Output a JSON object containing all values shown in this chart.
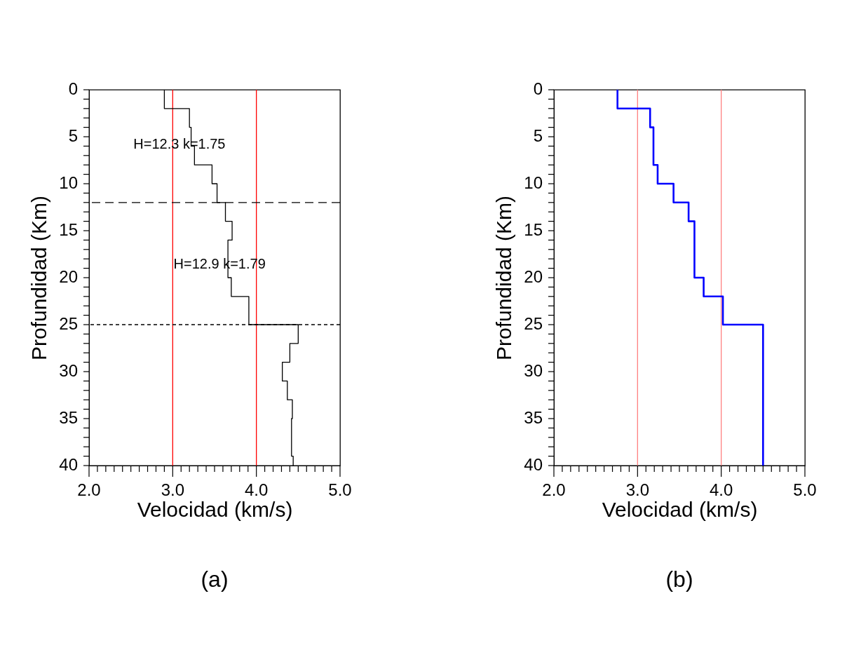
{
  "chart_data": [
    {
      "type": "line",
      "title": "(a)",
      "xlabel": "Velocidad (km/s)",
      "ylabel": "Profundidad (Km)",
      "series": [
        {
          "color": "#000000",
          "x": [
            2.9,
            2.9,
            3.2,
            3.2,
            3.22,
            3.22,
            3.26,
            3.26,
            3.47,
            3.47,
            3.53,
            3.53,
            3.63,
            3.63,
            3.71,
            3.71,
            3.66,
            3.66,
            3.7,
            3.7,
            3.91,
            3.91,
            4.5,
            4.5,
            4.4,
            4.4,
            4.31,
            4.31,
            4.37,
            4.37,
            4.43,
            4.43,
            4.42,
            4.42,
            4.44,
            4.44
          ],
          "values": [
            0,
            2,
            2,
            4,
            4,
            6,
            6,
            8,
            8,
            10,
            10,
            12,
            12,
            14,
            14,
            16,
            16,
            20,
            20,
            22,
            22,
            25,
            25,
            27,
            27,
            29,
            29,
            31,
            31,
            33,
            33,
            35,
            35,
            39,
            39,
            40
          ]
        }
      ],
      "xlim": [
        2.0,
        5.0
      ],
      "ylim": [
        40,
        0
      ],
      "xticks": [
        {
          "value": 2.0,
          "label": "2.0"
        },
        {
          "value": 2.1,
          "label": null
        },
        {
          "value": 2.2,
          "label": null
        },
        {
          "value": 2.3,
          "label": null
        },
        {
          "value": 2.4,
          "label": null
        },
        {
          "value": 2.5,
          "label": null
        },
        {
          "value": 2.6,
          "label": null
        },
        {
          "value": 2.7,
          "label": null
        },
        {
          "value": 2.8,
          "label": null
        },
        {
          "value": 2.9,
          "label": null
        },
        {
          "value": 3.0,
          "label": "3.0"
        },
        {
          "value": 3.1,
          "label": null
        },
        {
          "value": 3.2,
          "label": null
        },
        {
          "value": 3.3,
          "label": null
        },
        {
          "value": 3.4,
          "label": null
        },
        {
          "value": 3.5,
          "label": null
        },
        {
          "value": 3.6,
          "label": null
        },
        {
          "value": 3.7,
          "label": null
        },
        {
          "value": 3.8,
          "label": null
        },
        {
          "value": 3.9,
          "label": null
        },
        {
          "value": 4.0,
          "label": "4.0"
        },
        {
          "value": 4.1,
          "label": null
        },
        {
          "value": 4.2,
          "label": null
        },
        {
          "value": 4.3,
          "label": null
        },
        {
          "value": 4.4,
          "label": null
        },
        {
          "value": 4.5,
          "label": null
        },
        {
          "value": 4.6,
          "label": null
        },
        {
          "value": 4.7,
          "label": null
        },
        {
          "value": 4.8,
          "label": null
        },
        {
          "value": 4.9,
          "label": null
        },
        {
          "value": 5.0,
          "label": "5.0"
        }
      ],
      "yticks": [
        0,
        {
          "value": 1,
          "label": null
        },
        {
          "value": 2,
          "label": null
        },
        {
          "value": 3,
          "label": null
        },
        {
          "value": 4,
          "label": null
        },
        5,
        {
          "value": 6,
          "label": null
        },
        {
          "value": 7,
          "label": null
        },
        {
          "value": 8,
          "label": null
        },
        {
          "value": 9,
          "label": null
        },
        10,
        {
          "value": 11,
          "label": null
        },
        {
          "value": 12,
          "label": null
        },
        {
          "value": 13,
          "label": null
        },
        {
          "value": 14,
          "label": null
        },
        15,
        {
          "value": 16,
          "label": null
        },
        {
          "value": 17,
          "label": null
        },
        {
          "value": 18,
          "label": null
        },
        {
          "value": 19,
          "label": null
        },
        20,
        {
          "value": 21,
          "label": null
        },
        {
          "value": 22,
          "label": null
        },
        {
          "value": 23,
          "label": null
        },
        {
          "value": 24,
          "label": null
        },
        25,
        {
          "value": 26,
          "label": null
        },
        {
          "value": 27,
          "label": null
        },
        {
          "value": 28,
          "label": null
        },
        {
          "value": 29,
          "label": null
        },
        30,
        {
          "value": 31,
          "label": null
        },
        {
          "value": 32,
          "label": null
        },
        {
          "value": 33,
          "label": null
        },
        {
          "value": 34,
          "label": null
        },
        35,
        {
          "value": 36,
          "label": null
        },
        {
          "value": 37,
          "label": null
        },
        {
          "value": 38,
          "label": null
        },
        {
          "value": 39,
          "label": null
        },
        40
      ],
      "ref_lines": [
        {
          "axis": "x",
          "value": 3.0,
          "color": "#ff0000",
          "line_style": "solid"
        },
        {
          "axis": "x",
          "value": 4.0,
          "color": "#ff0000",
          "line_style": "solid"
        },
        {
          "axis": "y",
          "value": 12,
          "color": "#000000",
          "line_style": "dashed"
        },
        {
          "axis": "y",
          "value": 25,
          "color": "#000000",
          "line_style": "dotted"
        }
      ],
      "annotations": [
        "H=12.3   k=1.75",
        "H=12.9 k=1.79"
      ],
      "grid": false,
      "marker": "none",
      "line_style": "solid"
    },
    {
      "type": "line",
      "title": "(b)",
      "xlabel": "Velocidad (km/s)",
      "ylabel": "Profundidad (Km)",
      "series": [
        {
          "color": "#0000ff",
          "x": [
            2.76,
            2.76,
            3.15,
            3.15,
            3.19,
            3.19,
            3.24,
            3.24,
            3.43,
            3.43,
            3.61,
            3.61,
            3.68,
            3.68,
            3.79,
            3.79,
            4.02,
            4.02,
            4.5,
            4.5
          ],
          "values": [
            0,
            2,
            2,
            4,
            4,
            8,
            8,
            10,
            10,
            12,
            12,
            14,
            14,
            20,
            20,
            22,
            22,
            25,
            25,
            40
          ]
        }
      ],
      "xlim": [
        2.0,
        5.0
      ],
      "ylim": [
        40,
        0
      ],
      "xticks": [
        {
          "value": 2.0,
          "label": "2.0"
        },
        {
          "value": 2.1,
          "label": null
        },
        {
          "value": 2.2,
          "label": null
        },
        {
          "value": 2.3,
          "label": null
        },
        {
          "value": 2.4,
          "label": null
        },
        {
          "value": 2.5,
          "label": null
        },
        {
          "value": 2.6,
          "label": null
        },
        {
          "value": 2.7,
          "label": null
        },
        {
          "value": 2.8,
          "label": null
        },
        {
          "value": 2.9,
          "label": null
        },
        {
          "value": 3.0,
          "label": "3.0"
        },
        {
          "value": 3.1,
          "label": null
        },
        {
          "value": 3.2,
          "label": null
        },
        {
          "value": 3.3,
          "label": null
        },
        {
          "value": 3.4,
          "label": null
        },
        {
          "value": 3.5,
          "label": null
        },
        {
          "value": 3.6,
          "label": null
        },
        {
          "value": 3.7,
          "label": null
        },
        {
          "value": 3.8,
          "label": null
        },
        {
          "value": 3.9,
          "label": null
        },
        {
          "value": 4.0,
          "label": "4.0"
        },
        {
          "value": 4.1,
          "label": null
        },
        {
          "value": 4.2,
          "label": null
        },
        {
          "value": 4.3,
          "label": null
        },
        {
          "value": 4.4,
          "label": null
        },
        {
          "value": 4.5,
          "label": null
        },
        {
          "value": 4.6,
          "label": null
        },
        {
          "value": 4.7,
          "label": null
        },
        {
          "value": 4.8,
          "label": null
        },
        {
          "value": 4.9,
          "label": null
        },
        {
          "value": 5.0,
          "label": "5.0"
        }
      ],
      "yticks": [
        0,
        {
          "value": 1,
          "label": null
        },
        {
          "value": 2,
          "label": null
        },
        {
          "value": 3,
          "label": null
        },
        {
          "value": 4,
          "label": null
        },
        5,
        {
          "value": 6,
          "label": null
        },
        {
          "value": 7,
          "label": null
        },
        {
          "value": 8,
          "label": null
        },
        {
          "value": 9,
          "label": null
        },
        10,
        {
          "value": 11,
          "label": null
        },
        {
          "value": 12,
          "label": null
        },
        {
          "value": 13,
          "label": null
        },
        {
          "value": 14,
          "label": null
        },
        15,
        {
          "value": 16,
          "label": null
        },
        {
          "value": 17,
          "label": null
        },
        {
          "value": 18,
          "label": null
        },
        {
          "value": 19,
          "label": null
        },
        20,
        {
          "value": 21,
          "label": null
        },
        {
          "value": 22,
          "label": null
        },
        {
          "value": 23,
          "label": null
        },
        {
          "value": 24,
          "label": null
        },
        25,
        {
          "value": 26,
          "label": null
        },
        {
          "value": 27,
          "label": null
        },
        {
          "value": 28,
          "label": null
        },
        {
          "value": 29,
          "label": null
        },
        30,
        {
          "value": 31,
          "label": null
        },
        {
          "value": 32,
          "label": null
        },
        {
          "value": 33,
          "label": null
        },
        {
          "value": 34,
          "label": null
        },
        35,
        {
          "value": 36,
          "label": null
        },
        {
          "value": 37,
          "label": null
        },
        {
          "value": 38,
          "label": null
        },
        {
          "value": 39,
          "label": null
        },
        40
      ],
      "ref_lines": [
        {
          "axis": "x",
          "value": 3.0,
          "color": "#ff8080",
          "line_style": "solid"
        },
        {
          "axis": "x",
          "value": 4.0,
          "color": "#ff8080",
          "line_style": "solid"
        }
      ],
      "grid": false,
      "marker": "none",
      "line_style": "solid"
    }
  ]
}
